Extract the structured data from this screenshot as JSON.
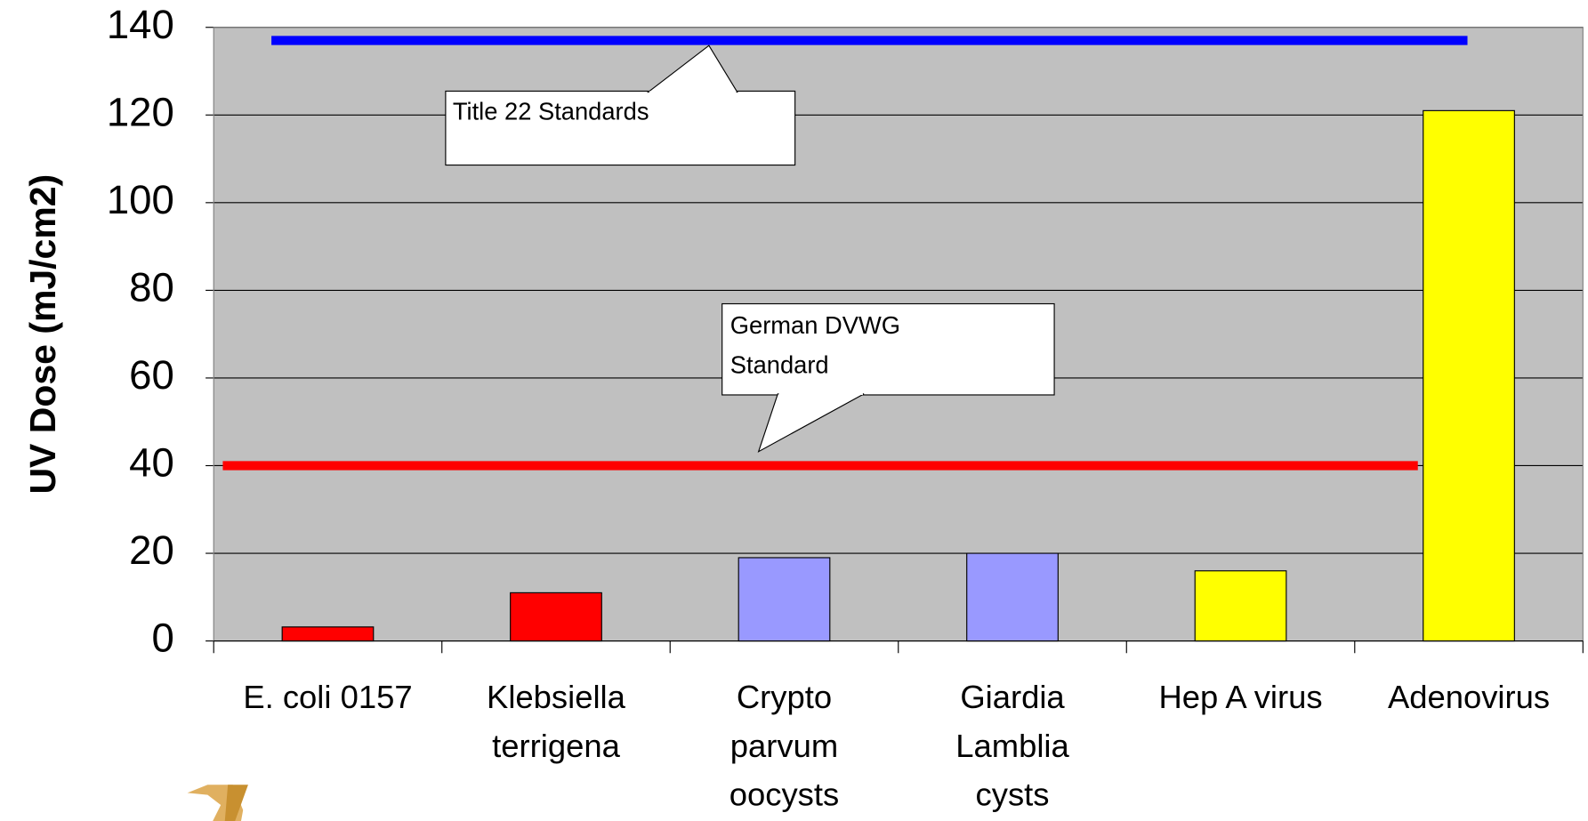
{
  "chart_data": {
    "type": "bar",
    "y_label": "UV Dose (mJ/cm2)",
    "categories": [
      [
        "E. coli 0157"
      ],
      [
        "Klebsiella",
        "terrigena"
      ],
      [
        "Crypto",
        "parvum",
        "oocysts"
      ],
      [
        "Giardia",
        "Lamblia",
        "cysts"
      ],
      [
        "Hep A virus"
      ],
      [
        "Adenovirus"
      ]
    ],
    "values": [
      3.2,
      11,
      19,
      20,
      16,
      121
    ],
    "colors": [
      "#ff0000",
      "#ff0000",
      "#9999ff",
      "#9999ff",
      "#ffff00",
      "#ffff00"
    ],
    "ylim": [
      0,
      140
    ],
    "yticks": [
      0,
      20,
      40,
      60,
      80,
      100,
      120,
      140
    ],
    "grid": true,
    "reference_lines": [
      {
        "value": 137,
        "color": "#0000ff",
        "label": [
          "Title 22 Standards"
        ]
      },
      {
        "value": 40,
        "color": "#ff0000",
        "label": [
          "German DVWG",
          "Standard"
        ]
      }
    ]
  }
}
